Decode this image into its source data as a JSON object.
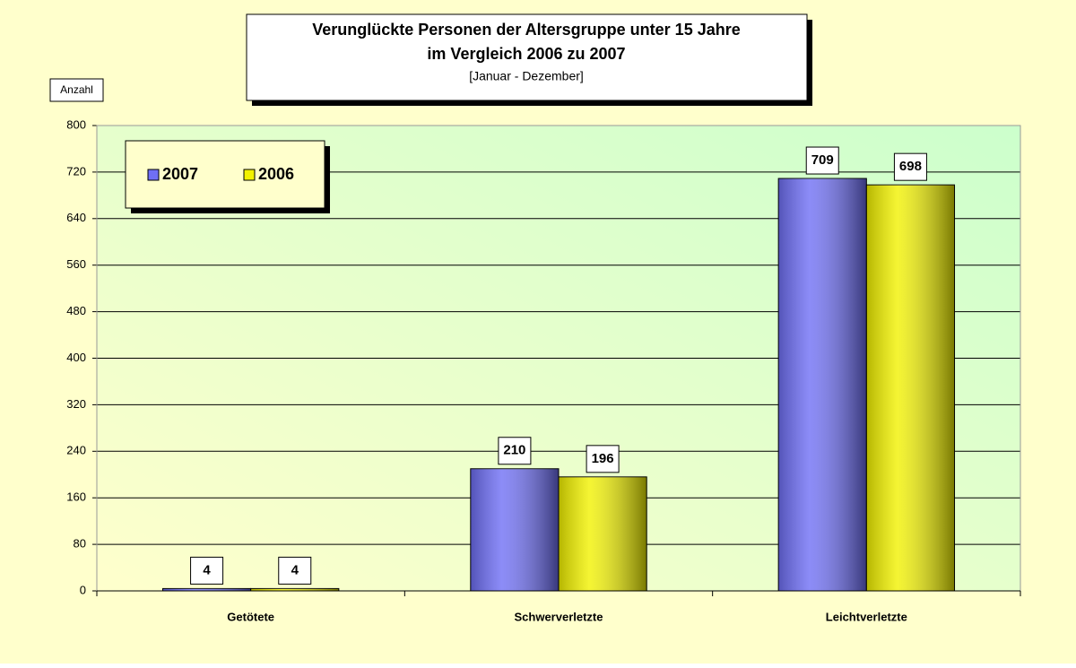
{
  "chart_data": {
    "type": "bar",
    "title": [
      "Verunglückte Personen der Altersgruppe unter 15 Jahre",
      "im Vergleich 2006 zu 2007"
    ],
    "subtitle": "[Januar - Dezember]",
    "y_label": "Anzahl",
    "categories": [
      "Getötete",
      "Schwerverletzte",
      "Leichtverletzte"
    ],
    "series": [
      {
        "name": "2007",
        "color": "#6f6ff5",
        "values": [
          4,
          210,
          709
        ]
      },
      {
        "name": "2006",
        "color": "#f2f200",
        "values": [
          4,
          196,
          698
        ]
      }
    ],
    "ylim": [
      0,
      800
    ],
    "yticks": [
      0,
      80,
      160,
      240,
      320,
      400,
      480,
      560,
      640,
      720,
      800
    ],
    "grid": true,
    "legend": "top-left"
  }
}
